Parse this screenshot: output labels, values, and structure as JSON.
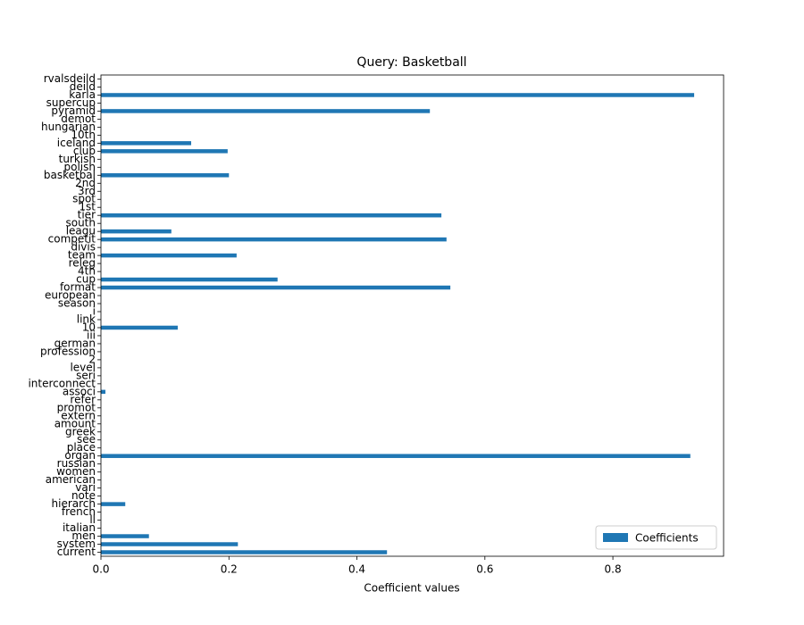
{
  "chart_data": {
    "type": "barh",
    "title": "Query: Basketball",
    "xlabel": "Coefficient values",
    "categories": [
      "current",
      "system",
      "men",
      "italian",
      "ll",
      "french",
      "hierarch",
      "note",
      "vari",
      "american",
      "women",
      "russian",
      "organ",
      "place",
      "see",
      "greek",
      "amount",
      "extern",
      "promot",
      "refer",
      "associ",
      "interconnect",
      "seri",
      "level",
      "2",
      "profession",
      "german",
      "iii",
      "10",
      "link",
      "i",
      "season",
      "european",
      "format",
      "cup",
      "4th",
      "releg",
      "team",
      "divis",
      "competit",
      "leagu",
      "south",
      "tier",
      "1st",
      "spot",
      "3rd",
      "2nd",
      "basketbal",
      "polish",
      "turkish",
      "club",
      "iceland",
      "10th",
      "hungarian",
      "demot",
      "pyramid",
      "supercup",
      "karla",
      "deild",
      "rvalsdeild"
    ],
    "series": [
      {
        "name": "Coefficients",
        "color": "#1f77b4",
        "values": [
          0.447,
          0.214,
          0.075,
          0,
          0,
          0,
          0.038,
          0,
          0,
          0,
          0,
          0,
          0.921,
          0,
          0,
          0,
          0,
          0,
          0,
          0,
          0.007,
          0,
          0,
          0,
          0,
          0,
          0,
          0,
          0.12,
          0,
          0,
          0,
          0,
          0.546,
          0.276,
          0,
          0,
          0.212,
          0,
          0.54,
          0.11,
          0,
          0.532,
          0,
          0,
          0,
          0,
          0.2,
          0,
          0,
          0.198,
          0.141,
          0,
          0,
          0,
          0.514,
          0,
          0.927,
          0,
          0
        ]
      }
    ],
    "xlim": [
      0,
      0.973
    ],
    "xticks": [
      {
        "value": 0,
        "label": "0.0"
      },
      0.2,
      0.4,
      0.6,
      0.8
    ],
    "legend": "lower right"
  }
}
